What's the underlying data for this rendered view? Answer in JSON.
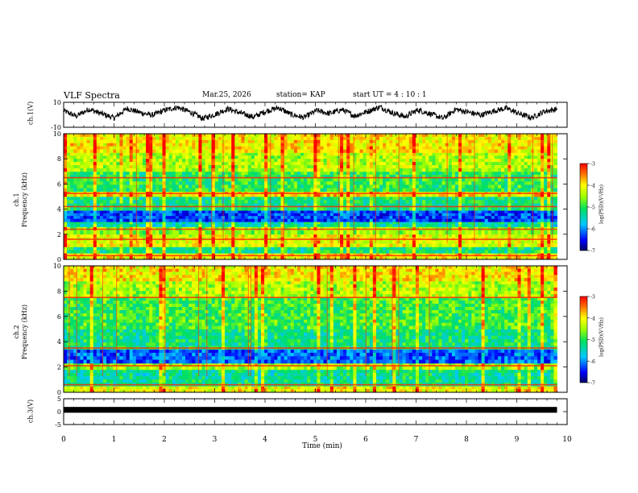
{
  "header": {
    "title": "VLF Spectra",
    "date": "Mar.25, 2026",
    "station": "station= KAP",
    "start_ut": "start  UT =   4 : 10 : 1"
  },
  "chart_data": [
    {
      "type": "line",
      "panel": "ch1-waveform",
      "ylabel": "ch.1(V)",
      "ylim": [
        -10,
        10
      ],
      "yticks": [
        "10",
        "-10"
      ],
      "xlim": [
        0,
        10
      ],
      "data_extent": [
        0,
        9.8
      ],
      "series": [
        {
          "name": "ch.1 voltage",
          "values": [
            3.2,
            -1.1,
            4.5,
            0.8,
            -2.6,
            5.1,
            1.9,
            -0.4,
            3.7,
            6.0,
            2.2,
            -3.1,
            0.5,
            4.8,
            1.3,
            -1.8,
            2.9,
            5.6,
            0.1,
            -2.2,
            3.4,
            1.0,
            4.1,
            -0.9,
            2.6,
            6.3,
            1.5,
            -1.5,
            3.9,
            0.7,
            -2.9,
            4.4,
            2.0,
            -0.2,
            3.1,
            5.3,
            0.9,
            -2.4,
            2.7,
            4.6
          ]
        }
      ]
    },
    {
      "type": "heatmap",
      "panel": "ch1-spectrogram",
      "ylabel_lines": [
        "ch.1",
        "Frequency  (kHz)"
      ],
      "ylim": [
        0,
        10
      ],
      "yticks": [
        "0",
        "2",
        "4",
        "6",
        "8",
        "10"
      ],
      "xlim": [
        0,
        10
      ],
      "data_extent": [
        0,
        9.8
      ],
      "colorbar": {
        "label": "log(PSD)(V²/Hz)",
        "range": [
          -7,
          -3
        ],
        "ticks": [
          "-3",
          "-4",
          "-5",
          "-6",
          "-7"
        ]
      },
      "bands_khz": [
        {
          "range": [
            0,
            0.5
          ],
          "log_psd": -4.0
        },
        {
          "range": [
            0.5,
            1.0
          ],
          "log_psd": -5.2
        },
        {
          "range": [
            1.0,
            2.0
          ],
          "log_psd": -4.2
        },
        {
          "range": [
            2.0,
            2.6
          ],
          "log_psd": -4.6
        },
        {
          "range": [
            2.6,
            3.0
          ],
          "log_psd": -5.4
        },
        {
          "range": [
            3.0,
            3.9
          ],
          "log_psd": -6.3
        },
        {
          "range": [
            3.9,
            5.0
          ],
          "log_psd": -5.2
        },
        {
          "range": [
            5.0,
            5.4
          ],
          "log_psd": -4.0
        },
        {
          "range": [
            5.4,
            7.0
          ],
          "log_psd": -5.0
        },
        {
          "range": [
            7.0,
            8.5
          ],
          "log_psd": -4.4
        },
        {
          "range": [
            8.5,
            10.0
          ],
          "log_psd": -4.0
        }
      ],
      "lines_khz": [
        5.25,
        4.2,
        2.4,
        1.6,
        6.5,
        0.3
      ]
    },
    {
      "type": "heatmap",
      "panel": "ch2-spectrogram",
      "ylabel_lines": [
        "ch.2",
        "Frequency  (kHz)"
      ],
      "ylim": [
        0,
        10
      ],
      "yticks": [
        "0",
        "2",
        "4",
        "6",
        "8",
        "10"
      ],
      "xlim": [
        0,
        10
      ],
      "data_extent": [
        0,
        9.8
      ],
      "colorbar": {
        "label": "log(PSD)(V²/Hz)",
        "range": [
          -7,
          -3
        ],
        "ticks": [
          "-3",
          "-4",
          "-5",
          "-6",
          "-7"
        ]
      },
      "bands_khz": [
        {
          "range": [
            0,
            0.5
          ],
          "log_psd": -4.1
        },
        {
          "range": [
            0.5,
            1.8
          ],
          "log_psd": -5.3
        },
        {
          "range": [
            1.8,
            2.3
          ],
          "log_psd": -4.5
        },
        {
          "range": [
            2.3,
            3.4
          ],
          "log_psd": -6.2
        },
        {
          "range": [
            3.4,
            5.0
          ],
          "log_psd": -5.2
        },
        {
          "range": [
            5.0,
            7.5
          ],
          "log_psd": -4.9
        },
        {
          "range": [
            7.5,
            8.8
          ],
          "log_psd": -4.4
        },
        {
          "range": [
            8.8,
            10.0
          ],
          "log_psd": -4.0
        }
      ],
      "lines_khz": [
        7.5,
        3.5,
        2.1,
        0.6
      ]
    },
    {
      "type": "line",
      "panel": "ch3-waveform",
      "ylabel": "ch.3(V)",
      "ylim": [
        -5,
        5
      ],
      "yticks": [
        "5",
        "0",
        "-5"
      ],
      "xlim": [
        0,
        10
      ],
      "data_extent": [
        0,
        9.8
      ],
      "series": [
        {
          "name": "ch.3 voltage",
          "values": [
            1.2,
            0.4,
            1.0,
            0.2,
            0.9,
            0.5,
            1.1,
            0.3,
            1.0,
            0.6
          ]
        }
      ]
    }
  ],
  "xaxis": {
    "label": "Time  (min)",
    "ticks": [
      "0",
      "1",
      "2",
      "3",
      "4",
      "5",
      "6",
      "7",
      "8",
      "9",
      "10"
    ],
    "range": [
      0,
      10
    ]
  }
}
